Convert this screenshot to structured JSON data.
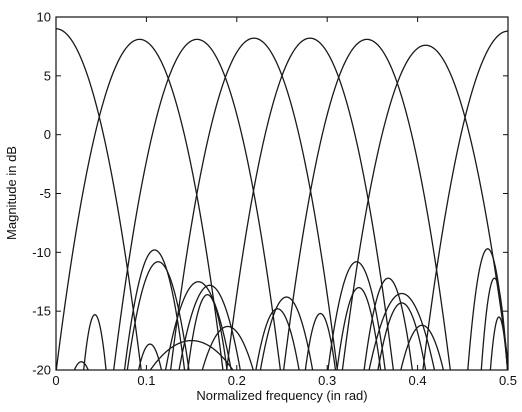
{
  "chart_data": {
    "type": "line",
    "xlabel": "Normalized frequency (in rad)",
    "ylabel": "Magnitude in dB",
    "xlim": [
      0,
      0.5
    ],
    "ylim": [
      -20,
      10
    ],
    "x_ticks": [
      "0",
      "0.1",
      "0.2",
      "0.3",
      "0.4",
      "0.5"
    ],
    "y_ticks": [
      "10",
      "5",
      "0",
      "-5",
      "-10",
      "-15",
      "-20"
    ],
    "grid": false,
    "legend": "none",
    "main_lobes": [
      {
        "center": 0.0,
        "peak_db": 9.0,
        "null_at_edge": 0.095
      },
      {
        "center": 0.0925,
        "peak_db": 8.1,
        "half_width": 0.093
      },
      {
        "center": 0.156,
        "peak_db": 8.1,
        "half_width": 0.093
      },
      {
        "center": 0.219,
        "peak_db": 8.2,
        "half_width": 0.093
      },
      {
        "center": 0.281,
        "peak_db": 8.2,
        "half_width": 0.093
      },
      {
        "center": 0.344,
        "peak_db": 8.1,
        "half_width": 0.093
      },
      {
        "center": 0.409,
        "peak_db": 7.6,
        "half_width": 0.093
      },
      {
        "center": 0.5,
        "peak_db": 8.8,
        "null_at_edge": 0.095
      }
    ],
    "sidelobes": [
      {
        "x0": 0.03,
        "x1": 0.056,
        "peak_db": -15.3
      },
      {
        "x0": 0.018,
        "x1": 0.038,
        "peak_db": -19.3
      },
      {
        "x0": 0.075,
        "x1": 0.143,
        "peak_db": -9.8
      },
      {
        "x0": 0.078,
        "x1": 0.148,
        "peak_db": -10.8
      },
      {
        "x0": 0.09,
        "x1": 0.118,
        "peak_db": -17.8
      },
      {
        "x0": 0.1,
        "x1": 0.2,
        "peak_db": -17.5
      },
      {
        "x0": 0.12,
        "x1": 0.195,
        "peak_db": -12.5
      },
      {
        "x0": 0.135,
        "x1": 0.205,
        "peak_db": -12.8
      },
      {
        "x0": 0.145,
        "x1": 0.19,
        "peak_db": -13.6
      },
      {
        "x0": 0.16,
        "x1": 0.22,
        "peak_db": -16.3
      },
      {
        "x0": 0.22,
        "x1": 0.27,
        "peak_db": -14.8
      },
      {
        "x0": 0.225,
        "x1": 0.285,
        "peak_db": -13.8
      },
      {
        "x0": 0.275,
        "x1": 0.31,
        "peak_db": -15.2
      },
      {
        "x0": 0.3,
        "x1": 0.365,
        "peak_db": -10.8
      },
      {
        "x0": 0.31,
        "x1": 0.36,
        "peak_db": -13.0
      },
      {
        "x0": 0.34,
        "x1": 0.395,
        "peak_db": -12.2
      },
      {
        "x0": 0.345,
        "x1": 0.42,
        "peak_db": -13.5
      },
      {
        "x0": 0.355,
        "x1": 0.41,
        "peak_db": -14.3
      },
      {
        "x0": 0.38,
        "x1": 0.43,
        "peak_db": -16.2
      },
      {
        "x0": 0.455,
        "x1": 0.5,
        "peak_db": -9.7
      },
      {
        "x0": 0.47,
        "x1": 0.5,
        "peak_db": -12.2
      },
      {
        "x0": 0.48,
        "x1": 0.5,
        "peak_db": -15.5
      }
    ]
  }
}
